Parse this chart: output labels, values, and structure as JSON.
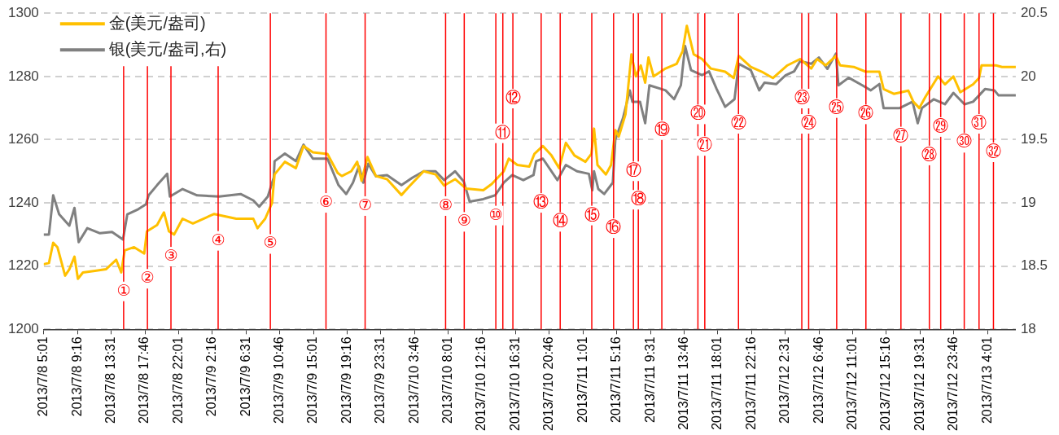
{
  "chart_data": {
    "type": "line",
    "marker": "none",
    "line_style": "solid",
    "grid": "y",
    "legend": "top left",
    "xlim": [
      "2013-07-08T05:01",
      "2013-07-13T07:35"
    ],
    "xticks": [
      {
        "value": "2013-07-08T05:01",
        "label": "2013/7/8 5:01"
      },
      {
        "value": "2013-07-08T09:16",
        "label": "2013/7/8 9:16"
      },
      {
        "value": "2013-07-08T13:31",
        "label": "2013/7/8 13:31"
      },
      {
        "value": "2013-07-08T17:46",
        "label": "2013/7/8 17:46"
      },
      {
        "value": "2013-07-08T22:01",
        "label": "2013/7/8 22:01"
      },
      {
        "value": "2013-07-09T02:16",
        "label": "2013/7/9 2:16"
      },
      {
        "value": "2013-07-09T06:31",
        "label": "2013/7/9 6:31"
      },
      {
        "value": "2013-07-09T10:46",
        "label": "2013/7/9 10:46"
      },
      {
        "value": "2013-07-09T15:01",
        "label": "2013/7/9 15:01"
      },
      {
        "value": "2013-07-09T19:16",
        "label": "2013/7/9 19:16"
      },
      {
        "value": "2013-07-09T23:31",
        "label": "2013/7/9 23:31"
      },
      {
        "value": "2013-07-10T03:46",
        "label": "2013/7/10 3:46"
      },
      {
        "value": "2013-07-10T08:01",
        "label": "2013/7/10 8:01"
      },
      {
        "value": "2013-07-10T12:16",
        "label": "2013/7/10 12:16"
      },
      {
        "value": "2013-07-10T16:31",
        "label": "2013/7/10 16:31"
      },
      {
        "value": "2013-07-10T20:46",
        "label": "2013/7/10 20:46"
      },
      {
        "value": "2013-07-11T01:01",
        "label": "2013/7/11 1:01"
      },
      {
        "value": "2013-07-11T05:16",
        "label": "2013/7/11 5:16"
      },
      {
        "value": "2013-07-11T09:31",
        "label": "2013/7/11 9:31"
      },
      {
        "value": "2013-07-11T13:46",
        "label": "2013/7/11 13:46"
      },
      {
        "value": "2013-07-11T18:01",
        "label": "2013/7/11 18:01"
      },
      {
        "value": "2013-07-11T22:16",
        "label": "2013/7/11 22:16"
      },
      {
        "value": "2013-07-12T02:31",
        "label": "2013/7/12 2:31"
      },
      {
        "value": "2013-07-12T06:46",
        "label": "2013/7/12 6:46"
      },
      {
        "value": "2013-07-12T11:01",
        "label": "2013/7/12 11:01"
      },
      {
        "value": "2013-07-12T15:16",
        "label": "2013/7/12 15:16"
      },
      {
        "value": "2013-07-12T19:31",
        "label": "2013/7/12 19:31"
      },
      {
        "value": "2013-07-12T23:46",
        "label": "2013/7/12 23:46"
      },
      {
        "value": "2013-07-13T04:01",
        "label": "2013/7/13 4:01"
      }
    ],
    "ylim": [
      1200,
      1300
    ],
    "yticks": [
      1200,
      1220,
      1240,
      1260,
      1280,
      1300
    ],
    "y2lim": [
      18,
      20.5
    ],
    "y2ticks": [
      18,
      18.5,
      19,
      19.5,
      20,
      20.5
    ],
    "series": [
      {
        "name": "金(美元/盎司)",
        "color": "#ffc000",
        "x": [
          "2013-07-08T05:01",
          "2013-07-08T05:40",
          "2013-07-08T06:12",
          "2013-07-08T06:44",
          "2013-07-08T07:42",
          "2013-07-08T08:14",
          "2013-07-08T08:53",
          "2013-07-08T09:19",
          "2013-07-08T09:57",
          "2013-07-08T11:28",
          "2013-07-08T12:51",
          "2013-07-08T14:09",
          "2013-07-08T14:47",
          "2013-07-08T15:13",
          "2013-07-08T16:24",
          "2013-07-08T17:41",
          "2013-07-08T18:01",
          "2013-07-08T19:18",
          "2013-07-08T20:10",
          "2013-07-08T20:48",
          "2013-07-08T21:27",
          "2013-07-08T22:31",
          "2013-07-08T23:49",
          "2013-07-09T02:30",
          "2013-07-09T05:17",
          "2013-07-09T07:26",
          "2013-07-09T07:58",
          "2013-07-09T08:56",
          "2013-07-09T09:48",
          "2013-07-09T10:07",
          "2013-07-09T11:25",
          "2013-07-09T12:48",
          "2013-07-09T13:46",
          "2013-07-09T14:57",
          "2013-07-09T16:47",
          "2013-07-09T18:04",
          "2013-07-09T18:36",
          "2013-07-09T19:47",
          "2013-07-09T20:32",
          "2013-07-09T21:05",
          "2013-07-09T21:50",
          "2013-07-09T22:54",
          "2013-07-10T00:18",
          "2013-07-10T02:07",
          "2013-07-10T03:12",
          "2013-07-10T04:55",
          "2013-07-10T06:25",
          "2013-07-10T07:30",
          "2013-07-10T08:53",
          "2013-07-10T10:17",
          "2013-07-10T12:26",
          "2013-07-10T13:31",
          "2013-07-10T15:01",
          "2013-07-10T15:39",
          "2013-07-10T16:44",
          "2013-07-10T18:14",
          "2013-07-10T18:53",
          "2013-07-10T19:57",
          "2013-07-10T21:02",
          "2013-07-10T22:00",
          "2013-07-10T22:51",
          "2013-07-10T23:56",
          "2013-07-11T01:19",
          "2013-07-11T02:04",
          "2013-07-11T02:24",
          "2013-07-11T02:50",
          "2013-07-11T03:54",
          "2013-07-11T04:33",
          "2013-07-11T05:05",
          "2013-07-11T05:31",
          "2013-07-11T06:22",
          "2013-07-11T07:07",
          "2013-07-11T07:40",
          "2013-07-11T08:18",
          "2013-07-11T08:51",
          "2013-07-11T09:16",
          "2013-07-11T09:55",
          "2013-07-11T11:25",
          "2013-07-11T12:49",
          "2013-07-11T13:34",
          "2013-07-11T14:06",
          "2013-07-11T14:58",
          "2013-07-11T16:02",
          "2013-07-11T17:07",
          "2013-07-11T18:56",
          "2013-07-11T20:01",
          "2013-07-11T20:39",
          "2013-07-11T22:10",
          "2013-07-11T23:33",
          "2013-07-12T00:57",
          "2013-07-12T02:47",
          "2013-07-12T04:23",
          "2013-07-12T05:47",
          "2013-07-12T06:32",
          "2013-07-12T07:37",
          "2013-07-12T08:54",
          "2013-07-12T09:26",
          "2013-07-12T11:09",
          "2013-07-12T12:39",
          "2013-07-12T14:23",
          "2013-07-12T14:55",
          "2013-07-12T16:12",
          "2013-07-12T18:02",
          "2013-07-12T18:40",
          "2013-07-12T19:25",
          "2013-07-12T20:11",
          "2013-07-12T21:47",
          "2013-07-12T22:39",
          "2013-07-12T23:43",
          "2013-07-13T00:35",
          "2013-07-13T02:12",
          "2013-07-13T02:57",
          "2013-07-13T03:16",
          "2013-07-13T05:05",
          "2013-07-13T05:51",
          "2013-07-13T07:34"
        ],
        "values": [
          1220.6,
          1221,
          1227.4,
          1226,
          1217,
          1219,
          1223,
          1216,
          1218,
          1218.5,
          1219,
          1222,
          1218,
          1225,
          1226,
          1224,
          1231,
          1233,
          1237,
          1231,
          1230,
          1235,
          1233.5,
          1236.5,
          1235,
          1235,
          1232,
          1235,
          1240,
          1249,
          1253,
          1251,
          1258,
          1256,
          1255.5,
          1249.5,
          1248.5,
          1250,
          1253,
          1247,
          1254.5,
          1248.5,
          1247.5,
          1242.5,
          1245.5,
          1250,
          1249,
          1245.5,
          1247.5,
          1244.5,
          1244,
          1246,
          1250,
          1254,
          1252,
          1251.5,
          1255.5,
          1258,
          1255,
          1251,
          1259,
          1255,
          1253,
          1255.5,
          1263.5,
          1252,
          1249,
          1252,
          1263,
          1261,
          1268,
          1287,
          1280,
          1283.5,
          1278,
          1286,
          1280,
          1282.5,
          1284,
          1288,
          1296,
          1287,
          1285.5,
          1282.5,
          1281.5,
          1279.5,
          1286.5,
          1283,
          1281.5,
          1279.5,
          1283.5,
          1285.5,
          1282.5,
          1285.5,
          1283.5,
          1286.5,
          1283.5,
          1283,
          1281.5,
          1281.5,
          1276,
          1274.5,
          1275.5,
          1272,
          1270,
          1273.5,
          1280,
          1277.5,
          1280,
          1275,
          1277.5,
          1279.5,
          1283.5,
          1283.5,
          1283,
          1283
        ]
      },
      {
        "name": "银(美元/盎司,右)",
        "color": "#808080",
        "axis": "y2",
        "x": [
          "2013-07-08T05:01",
          "2013-07-08T05:40",
          "2013-07-08T06:12",
          "2013-07-08T06:57",
          "2013-07-08T08:14",
          "2013-07-08T08:53",
          "2013-07-08T09:25",
          "2013-07-08T10:30",
          "2013-07-08T12:06",
          "2013-07-08T13:37",
          "2013-07-08T15:00",
          "2013-07-08T15:33",
          "2013-07-08T16:56",
          "2013-07-08T17:54",
          "2013-07-08T18:14",
          "2013-07-08T19:18",
          "2013-07-08T20:35",
          "2013-07-08T20:55",
          "2013-07-08T22:31",
          "2013-07-09T00:21",
          "2013-07-09T03:08",
          "2013-07-09T05:50",
          "2013-07-09T07:26",
          "2013-07-09T08:11",
          "2013-07-09T09:16",
          "2013-07-09T10:01",
          "2013-07-09T10:07",
          "2013-07-09T11:25",
          "2013-07-09T12:48",
          "2013-07-09T13:46",
          "2013-07-09T14:57",
          "2013-07-09T16:47",
          "2013-07-09T18:11",
          "2013-07-09T19:09",
          "2013-07-09T20:00",
          "2013-07-09T20:45",
          "2013-07-09T21:18",
          "2013-07-09T21:56",
          "2013-07-09T22:54",
          "2013-07-10T00:18",
          "2013-07-10T02:07",
          "2013-07-10T03:31",
          "2013-07-10T04:55",
          "2013-07-10T06:25",
          "2013-07-10T07:30",
          "2013-07-10T08:53",
          "2013-07-10T09:58",
          "2013-07-10T10:43",
          "2013-07-10T12:26",
          "2013-07-10T13:56",
          "2013-07-10T15:01",
          "2013-07-10T16:05",
          "2013-07-10T17:29",
          "2013-07-10T18:46",
          "2013-07-10T19:06",
          "2013-07-10T19:57",
          "2013-07-10T21:47",
          "2013-07-10T22:51",
          "2013-07-11T00:15",
          "2013-07-11T01:45",
          "2013-07-11T02:11",
          "2013-07-11T02:24",
          "2013-07-11T02:56",
          "2013-07-11T03:41",
          "2013-07-11T04:46",
          "2013-07-11T05:05",
          "2013-07-11T06:03",
          "2013-07-11T06:55",
          "2013-07-11T07:14",
          "2013-07-11T08:12",
          "2013-07-11T08:51",
          "2013-07-11T09:23",
          "2013-07-11T11:25",
          "2013-07-11T12:30",
          "2013-07-11T13:21",
          "2013-07-11T13:53",
          "2013-07-11T14:38",
          "2013-07-11T16:02",
          "2013-07-11T16:54",
          "2013-07-11T17:52",
          "2013-07-11T18:56",
          "2013-07-11T20:07",
          "2013-07-11T20:39",
          "2013-07-11T22:10",
          "2013-07-11T23:14",
          "2013-07-11T23:53",
          "2013-07-12T01:23",
          "2013-07-12T02:34",
          "2013-07-12T03:38",
          "2013-07-12T04:23",
          "2013-07-12T05:47",
          "2013-07-12T06:45",
          "2013-07-12T07:50",
          "2013-07-12T08:54",
          "2013-07-12T09:13",
          "2013-07-12T10:31",
          "2013-07-12T12:14",
          "2013-07-12T13:18",
          "2013-07-12T14:23",
          "2013-07-12T14:55",
          "2013-07-12T16:57",
          "2013-07-12T18:34",
          "2013-07-12T19:13",
          "2013-07-12T19:45",
          "2013-07-12T21:15",
          "2013-07-12T22:39",
          "2013-07-12T23:43",
          "2013-07-13T01:07",
          "2013-07-13T02:12",
          "2013-07-13T03:42",
          "2013-07-13T04:53",
          "2013-07-13T05:25",
          "2013-07-13T07:34"
        ],
        "values": [
          18.75,
          18.75,
          19.06,
          18.91,
          18.82,
          18.96,
          18.69,
          18.8,
          18.76,
          18.77,
          18.71,
          18.91,
          18.95,
          18.99,
          19.06,
          19.14,
          19.23,
          19.05,
          19.11,
          19.06,
          19.05,
          19.07,
          19.02,
          18.97,
          19.05,
          19.2,
          19.33,
          19.39,
          19.33,
          19.46,
          19.35,
          19.35,
          19.14,
          19.07,
          19.16,
          19.29,
          19.16,
          19.31,
          19.21,
          19.22,
          19.14,
          19.2,
          19.25,
          19.25,
          19.18,
          19.25,
          19.17,
          19.01,
          19.03,
          19.06,
          19.16,
          19.22,
          19.18,
          19.22,
          19.33,
          19.35,
          19.18,
          19.3,
          19.25,
          19.23,
          19.1,
          19.25,
          19.11,
          19.07,
          19.16,
          19.5,
          19.67,
          19.89,
          19.8,
          19.8,
          19.63,
          19.93,
          19.89,
          19.82,
          19.93,
          20.24,
          20.05,
          20.01,
          20.04,
          19.9,
          19.76,
          19.82,
          20.1,
          20.05,
          19.89,
          19.95,
          19.94,
          20.01,
          20.04,
          20.12,
          20.1,
          20.15,
          20.06,
          20.18,
          19.93,
          19.99,
          19.93,
          19.89,
          19.94,
          19.75,
          19.75,
          19.8,
          19.63,
          19.75,
          19.82,
          19.78,
          19.87,
          19.78,
          19.8,
          19.9,
          19.89,
          19.85,
          19.85
        ]
      }
    ],
    "ref_lines": [
      {
        "axis": "x",
        "value": "2013-07-08T15:05",
        "color": "#ff0000"
      },
      {
        "axis": "x",
        "value": "2013-07-08T18:05",
        "color": "#ff0000"
      },
      {
        "axis": "x",
        "value": "2013-07-08T21:03",
        "color": "#ff0000"
      },
      {
        "axis": "x",
        "value": "2013-07-09T03:00",
        "color": "#ff0000"
      },
      {
        "axis": "x",
        "value": "2013-07-09T09:35",
        "color": "#ff0000"
      },
      {
        "axis": "x",
        "value": "2013-07-09T16:36",
        "color": "#ff0000"
      },
      {
        "axis": "x",
        "value": "2013-07-09T21:32",
        "color": "#ff0000"
      },
      {
        "axis": "x",
        "value": "2013-07-10T07:41",
        "color": "#ff0000"
      },
      {
        "axis": "x",
        "value": "2013-07-10T10:02",
        "color": "#ff0000"
      },
      {
        "axis": "x",
        "value": "2013-07-10T14:01",
        "color": "#ff0000"
      },
      {
        "axis": "x",
        "value": "2013-07-10T14:54",
        "color": "#ff0000"
      },
      {
        "axis": "x",
        "value": "2013-07-10T16:10",
        "color": "#ff0000"
      },
      {
        "axis": "x",
        "value": "2013-07-10T19:44",
        "color": "#ff0000"
      },
      {
        "axis": "x",
        "value": "2013-07-10T22:08",
        "color": "#ff0000"
      },
      {
        "axis": "x",
        "value": "2013-07-11T02:07",
        "color": "#ff0000"
      },
      {
        "axis": "x",
        "value": "2013-07-11T04:52",
        "color": "#ff0000"
      },
      {
        "axis": "x",
        "value": "2013-07-11T07:22",
        "color": "#ff0000"
      },
      {
        "axis": "x",
        "value": "2013-07-11T07:59",
        "color": "#ff0000"
      },
      {
        "axis": "x",
        "value": "2013-07-11T10:57",
        "color": "#ff0000"
      },
      {
        "axis": "x",
        "value": "2013-07-11T15:30",
        "color": "#ff0000"
      },
      {
        "axis": "x",
        "value": "2013-07-11T16:22",
        "color": "#ff0000"
      },
      {
        "axis": "x",
        "value": "2013-07-11T20:37",
        "color": "#ff0000"
      },
      {
        "axis": "x",
        "value": "2013-07-12T04:36",
        "color": "#ff0000"
      },
      {
        "axis": "x",
        "value": "2013-07-12T05:28",
        "color": "#ff0000"
      },
      {
        "axis": "x",
        "value": "2013-07-12T09:00",
        "color": "#ff0000"
      },
      {
        "axis": "x",
        "value": "2013-07-12T12:41",
        "color": "#ff0000"
      },
      {
        "axis": "x",
        "value": "2013-07-12T17:06",
        "color": "#ff0000"
      },
      {
        "axis": "x",
        "value": "2013-07-12T20:41",
        "color": "#ff0000"
      },
      {
        "axis": "x",
        "value": "2013-07-12T22:07",
        "color": "#ff0000"
      },
      {
        "axis": "x",
        "value": "2013-07-13T01:05",
        "color": "#ff0000"
      },
      {
        "axis": "x",
        "value": "2013-07-13T02:57",
        "color": "#ff0000"
      },
      {
        "axis": "x",
        "value": "2013-07-13T04:46",
        "color": "#ff0000"
      }
    ],
    "annotations": [
      {
        "text": "①",
        "x": "2013-07-08T15:05",
        "y": 1212
      },
      {
        "text": "②",
        "x": "2013-07-08T18:05",
        "y": 1216
      },
      {
        "text": "③",
        "x": "2013-07-08T21:03",
        "y": 1223
      },
      {
        "text": "④",
        "x": "2013-07-09T03:00",
        "y": 1228
      },
      {
        "text": "⑤",
        "x": "2013-07-09T09:35",
        "y": 1227
      },
      {
        "text": "⑥",
        "x": "2013-07-09T16:36",
        "y": 1240
      },
      {
        "text": "⑦",
        "x": "2013-07-09T21:32",
        "y": 1239
      },
      {
        "text": "⑧",
        "x": "2013-07-10T07:41",
        "y": 1239
      },
      {
        "text": "⑨",
        "x": "2013-07-10T10:02",
        "y": 1234
      },
      {
        "text": "⑩",
        "x": "2013-07-10T14:01",
        "y": 1236
      },
      {
        "text": "⑪",
        "x": "2013-07-10T14:54",
        "y": 1262
      },
      {
        "text": "⑫",
        "x": "2013-07-10T16:10",
        "y": 1273
      },
      {
        "text": "⑬",
        "x": "2013-07-10T19:44",
        "y": 1240
      },
      {
        "text": "⑭",
        "x": "2013-07-10T22:08",
        "y": 1234
      },
      {
        "text": "⑮",
        "x": "2013-07-11T02:07",
        "y": 1236
      },
      {
        "text": "⑯",
        "x": "2013-07-11T04:52",
        "y": 1232
      },
      {
        "text": "⑰",
        "x": "2013-07-11T07:22",
        "y": 1250
      },
      {
        "text": "⑱",
        "x": "2013-07-11T07:59",
        "y": 1241
      },
      {
        "text": "⑲",
        "x": "2013-07-11T10:57",
        "y": 1263
      },
      {
        "text": "⑳",
        "x": "2013-07-11T15:30",
        "y": 1268
      },
      {
        "text": "㉑",
        "x": "2013-07-11T16:22",
        "y": 1258
      },
      {
        "text": "㉒",
        "x": "2013-07-11T20:37",
        "y": 1265
      },
      {
        "text": "㉓",
        "x": "2013-07-12T04:36",
        "y": 1273
      },
      {
        "text": "㉔",
        "x": "2013-07-12T05:28",
        "y": 1265
      },
      {
        "text": "㉕",
        "x": "2013-07-12T09:00",
        "y": 1270
      },
      {
        "text": "㉖",
        "x": "2013-07-12T12:41",
        "y": 1268
      },
      {
        "text": "㉗",
        "x": "2013-07-12T17:06",
        "y": 1261
      },
      {
        "text": "㉘",
        "x": "2013-07-12T20:41",
        "y": 1255
      },
      {
        "text": "㉙",
        "x": "2013-07-12T22:07",
        "y": 1264
      },
      {
        "text": "㉚",
        "x": "2013-07-13T01:05",
        "y": 1259
      },
      {
        "text": "㉛",
        "x": "2013-07-13T02:57",
        "y": 1265
      },
      {
        "text": "㉜",
        "x": "2013-07-13T04:46",
        "y": 1256
      }
    ]
  }
}
